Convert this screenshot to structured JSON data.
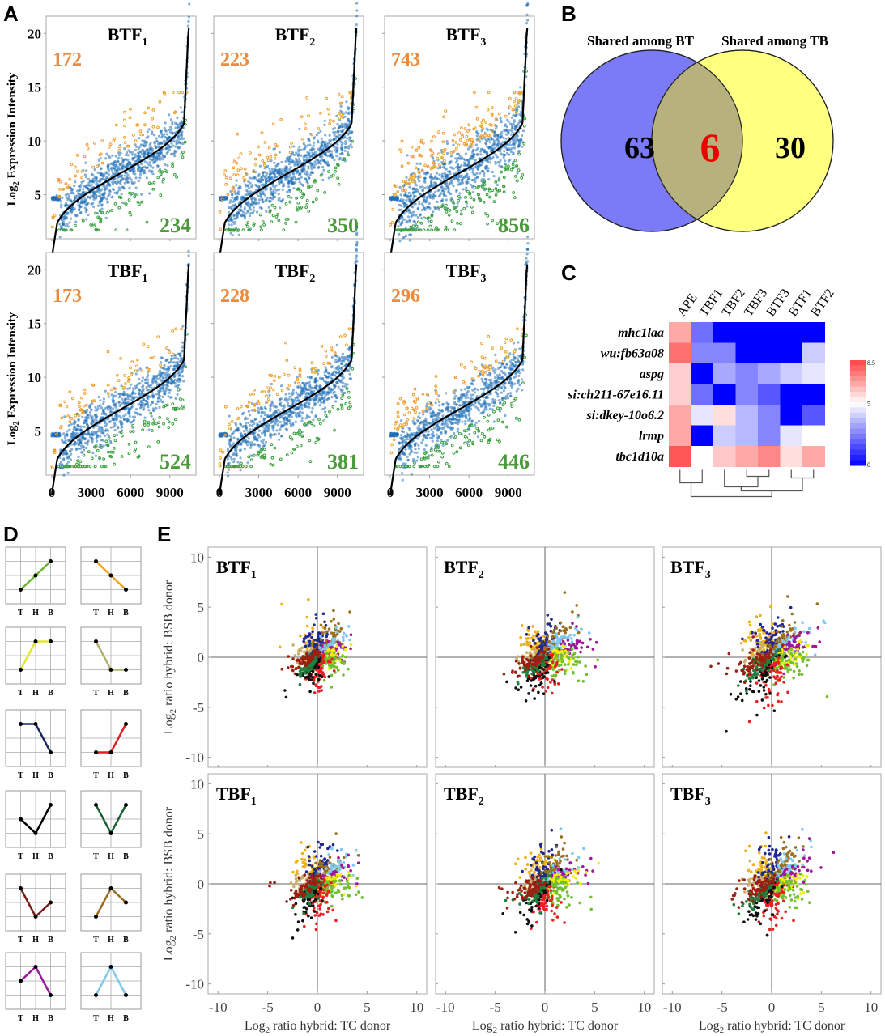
{
  "panel_labels": {
    "A": "A",
    "B": "B",
    "C": "C",
    "D": "D",
    "E": "E"
  },
  "chart_data": [
    {
      "id": "A",
      "type": "scatter",
      "description": "Ranked expression scatter plots",
      "ylabel": "Log₂ Expression Intensity",
      "ylabel_main": "Log",
      "ylabel_sub": "2",
      "ylabel_rest": " Expression Intensity",
      "xlim": [
        0,
        10500
      ],
      "ylim": [
        0,
        21
      ],
      "xticks": [
        "0",
        "3000",
        "6000",
        "9000"
      ],
      "xtick_values": [
        0,
        3000,
        6000,
        9000
      ],
      "yticks": [
        "5",
        "10",
        "15",
        "20"
      ],
      "ytick_values": [
        5,
        10,
        15,
        20
      ],
      "colors": {
        "up": "#f0a030",
        "mid": "#1f6fb8",
        "down": "#3aa040",
        "curve": "#000000",
        "up_label": "#ee8a3c",
        "down_label": "#4a9a3a"
      },
      "panels": [
        {
          "title": "BTF",
          "sub": "1",
          "up": "172",
          "down": "234",
          "spread": 1.0
        },
        {
          "title": "BTF",
          "sub": "2",
          "up": "223",
          "down": "350",
          "spread": 1.05
        },
        {
          "title": "BTF",
          "sub": "3",
          "up": "743",
          "down": "856",
          "spread": 1.35
        },
        {
          "title": "TBF",
          "sub": "1",
          "up": "173",
          "down": "524",
          "spread": 1.05
        },
        {
          "title": "TBF",
          "sub": "2",
          "up": "228",
          "down": "381",
          "spread": 1.05
        },
        {
          "title": "TBF",
          "sub": "3",
          "up": "296",
          "down": "446",
          "spread": 1.1
        }
      ]
    },
    {
      "id": "B",
      "type": "venn",
      "sets": [
        {
          "label": "Shared among BT",
          "only": "63",
          "color": "#7b7bf7"
        },
        {
          "label": "Shared among TB",
          "only": "30",
          "color": "#ffff80"
        }
      ],
      "intersection": {
        "value": "6",
        "color": "#b7b27d",
        "text_color": "#ee0000"
      }
    },
    {
      "id": "C",
      "type": "heatmap",
      "columns": [
        "APE",
        "TBF1",
        "TBF2",
        "TBF3",
        "BTF3",
        "BTF1",
        "BTF2"
      ],
      "rows": [
        "mhc1laa",
        "wu:fb63a08",
        "aspg",
        "si:ch211-67e16.11",
        "si:dkey-10o6.2",
        "lrmp",
        "tbc1d10a"
      ],
      "values": [
        [
          6.6,
          2.2,
          0.0,
          0.0,
          0.0,
          0.0,
          0.0
        ],
        [
          7.6,
          2.6,
          2.6,
          0.0,
          0.0,
          0.0,
          4.0
        ],
        [
          5.9,
          0.0,
          3.3,
          2.6,
          3.3,
          4.0,
          4.5
        ],
        [
          5.9,
          2.2,
          0.0,
          2.6,
          1.7,
          0.0,
          0.0
        ],
        [
          6.6,
          4.5,
          5.6,
          3.6,
          2.6,
          0.0,
          1.7
        ],
        [
          6.6,
          0.0,
          4.0,
          3.6,
          2.6,
          4.5,
          5.0
        ],
        [
          8.1,
          5.0,
          6.0,
          6.6,
          7.2,
          5.6,
          6.6
        ]
      ],
      "scale": {
        "min": 0,
        "mid": 5,
        "max": 8.5,
        "tick_labels": [
          "8.5",
          "5",
          "0"
        ]
      },
      "colormap": {
        "low": "#0000ff",
        "mid": "#ffffff",
        "high": "#ff4040"
      }
    },
    {
      "id": "D",
      "type": "line",
      "description": "Expression pattern schematics",
      "xlabels": [
        "T",
        "H",
        "B"
      ],
      "patterns": [
        {
          "values": [
            1,
            2,
            3
          ],
          "color": "#6ab42e"
        },
        {
          "values": [
            3,
            2,
            1
          ],
          "color": "#f0a020"
        },
        {
          "values": [
            1,
            3,
            3
          ],
          "color": "#e0e830"
        },
        {
          "values": [
            3,
            1,
            1
          ],
          "color": "#b0b070"
        },
        {
          "values": [
            3,
            3,
            1
          ],
          "color": "#1a2a60"
        },
        {
          "values": [
            1,
            1,
            3
          ],
          "color": "#e02020"
        },
        {
          "values": [
            2,
            1,
            3
          ],
          "color": "#000000"
        },
        {
          "values": [
            3,
            1,
            3
          ],
          "color": "#1a6030"
        },
        {
          "values": [
            3,
            1,
            2
          ],
          "color": "#7a1a1a"
        },
        {
          "values": [
            1,
            3,
            2
          ],
          "color": "#9a6a20"
        },
        {
          "values": [
            2,
            3,
            1
          ],
          "color": "#9a1a9a"
        },
        {
          "values": [
            1,
            3,
            1
          ],
          "color": "#80c8e8"
        }
      ]
    },
    {
      "id": "E",
      "type": "scatter",
      "xlabel_main": "Log",
      "xlabel_sub": "2",
      "xlabel_rest": " ratio hybrid: TC donor",
      "ylabel_main": "Log",
      "ylabel_sub": "2",
      "ylabel_rest": " ratio hybrid: BSB donor",
      "xlim": [
        -11,
        11
      ],
      "ylim": [
        -11,
        11
      ],
      "xticks": [
        "-10",
        "-5",
        "0",
        "5",
        "10"
      ],
      "tick_values": [
        -10,
        -5,
        0,
        5,
        10
      ],
      "yticks": [
        "10",
        "5",
        "0",
        "-5",
        "-10"
      ],
      "cluster_colors": {
        "orange": "#f0b010",
        "tan": "#c8b070",
        "navy": "#202890",
        "brown": "#9a7020",
        "skyblue": "#80c8f0",
        "purple": "#a01898",
        "yellow": "#f0f000",
        "lime": "#70c030",
        "red": "#e82020",
        "black": "#101010",
        "darkgreen": "#208040",
        "darkred": "#9a2010"
      },
      "panels": [
        {
          "title": "BTF",
          "sub": "1",
          "spread": 1.0
        },
        {
          "title": "BTF",
          "sub": "2",
          "spread": 1.1
        },
        {
          "title": "BTF",
          "sub": "3",
          "spread": 1.35
        },
        {
          "title": "TBF",
          "sub": "1",
          "spread": 1.1
        },
        {
          "title": "TBF",
          "sub": "2",
          "spread": 1.1
        },
        {
          "title": "TBF",
          "sub": "3",
          "spread": 1.25
        }
      ]
    }
  ]
}
